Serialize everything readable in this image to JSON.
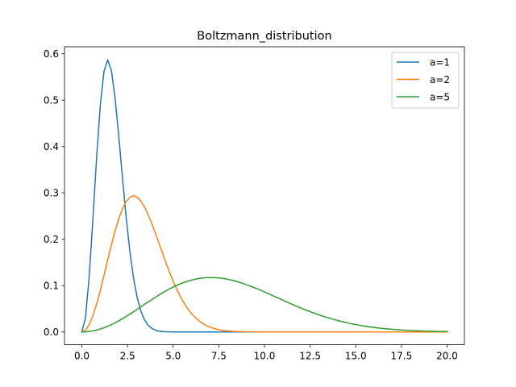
{
  "chart_data": {
    "type": "line",
    "title": "Boltzmann_distribution",
    "xlabel": "",
    "ylabel": "",
    "xlim": [
      -0.95,
      20.95
    ],
    "ylim": [
      -0.0276,
      0.6152
    ],
    "x_ticks": [
      0.0,
      2.5,
      5.0,
      7.5,
      10.0,
      12.5,
      15.0,
      17.5,
      20.0
    ],
    "x_tick_labels": [
      "0.0",
      "2.5",
      "5.0",
      "7.5",
      "10.0",
      "12.5",
      "15.0",
      "17.5",
      "20.0"
    ],
    "y_ticks": [
      0.0,
      0.1,
      0.2,
      0.3,
      0.4,
      0.5,
      0.6
    ],
    "y_tick_labels": [
      "0.0",
      "0.1",
      "0.2",
      "0.3",
      "0.4",
      "0.5",
      "0.6"
    ],
    "grid": false,
    "legend_position": "top-right",
    "x_range": [
      0,
      20
    ],
    "series": [
      {
        "name": "a=1",
        "a": 1,
        "color": "#1f77b4"
      },
      {
        "name": "a=2",
        "a": 2,
        "color": "#ff7f0e"
      },
      {
        "name": "a=5",
        "a": 5,
        "color": "#2ca02c"
      }
    ]
  }
}
